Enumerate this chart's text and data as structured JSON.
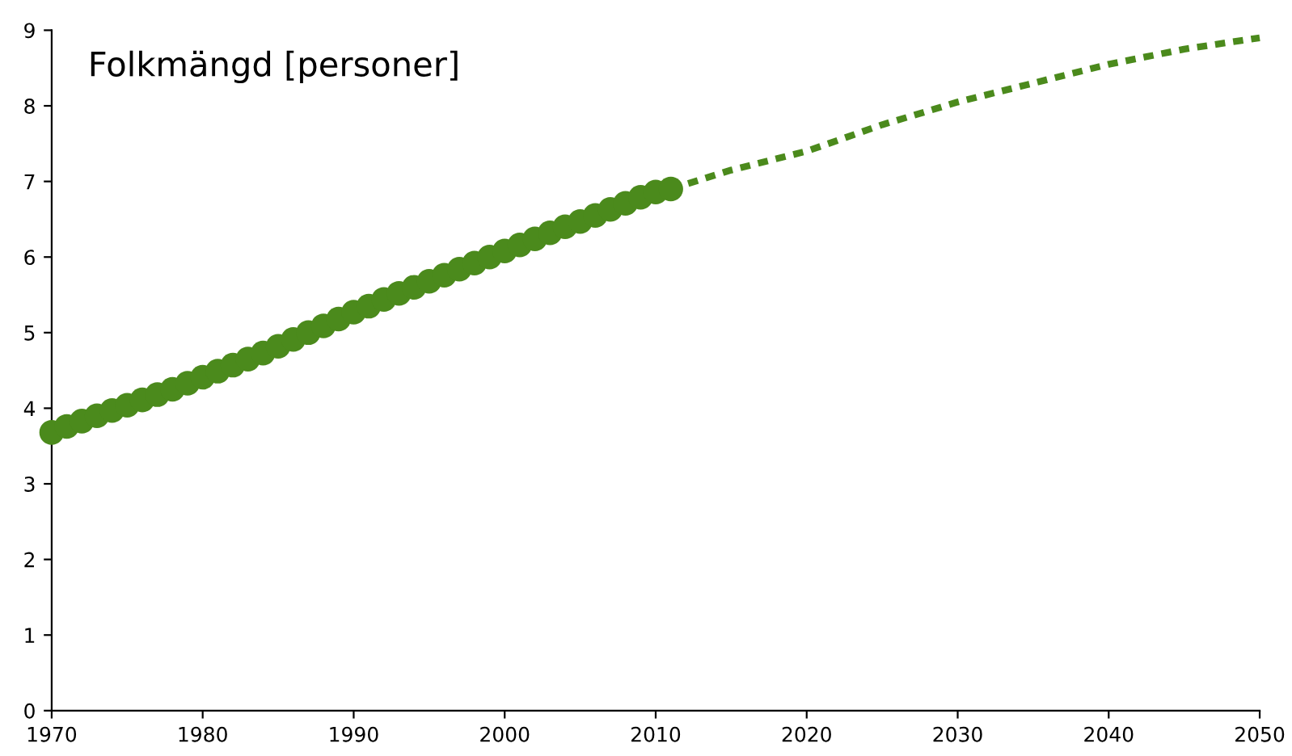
{
  "chart_data": {
    "type": "line",
    "title": "Folkmängd [personer]",
    "xlim": [
      1970,
      2050
    ],
    "xticks": [
      1970,
      1980,
      1990,
      2000,
      2010,
      2020,
      2030,
      2040,
      2050
    ],
    "ylim": [
      0,
      9
    ],
    "yticks": [
      0,
      1,
      2,
      3,
      4,
      5,
      6,
      7,
      8,
      9
    ],
    "grid": false,
    "legend": false,
    "series": [
      {
        "type": "scatter",
        "color": "#4b8a1c",
        "marker": "circle",
        "x": [
          1970,
          1971,
          1972,
          1973,
          1974,
          1975,
          1976,
          1977,
          1978,
          1979,
          1980,
          1981,
          1982,
          1983,
          1984,
          1985,
          1986,
          1987,
          1988,
          1989,
          1990,
          1991,
          1992,
          1993,
          1994,
          1995,
          1996,
          1997,
          1998,
          1999,
          2000,
          2001,
          2002,
          2003,
          2004,
          2005,
          2006,
          2007,
          2008,
          2009,
          2010,
          2011
        ],
        "values": [
          3.68,
          3.76,
          3.83,
          3.9,
          3.97,
          4.04,
          4.11,
          4.18,
          4.25,
          4.33,
          4.41,
          4.49,
          4.57,
          4.65,
          4.73,
          4.82,
          4.91,
          5.0,
          5.09,
          5.18,
          5.27,
          5.35,
          5.44,
          5.52,
          5.6,
          5.68,
          5.76,
          5.84,
          5.92,
          6.0,
          6.08,
          6.16,
          6.24,
          6.32,
          6.4,
          6.47,
          6.55,
          6.63,
          6.71,
          6.79,
          6.86,
          6.9
        ]
      },
      {
        "color": "#4b8a1c",
        "marker": "none",
        "line_style": "dashed",
        "x": [
          2011,
          2015,
          2020,
          2025,
          2030,
          2035,
          2040,
          2045,
          2050
        ],
        "values": [
          6.9,
          7.15,
          7.4,
          7.75,
          8.05,
          8.3,
          8.55,
          8.75,
          8.9
        ]
      }
    ]
  }
}
